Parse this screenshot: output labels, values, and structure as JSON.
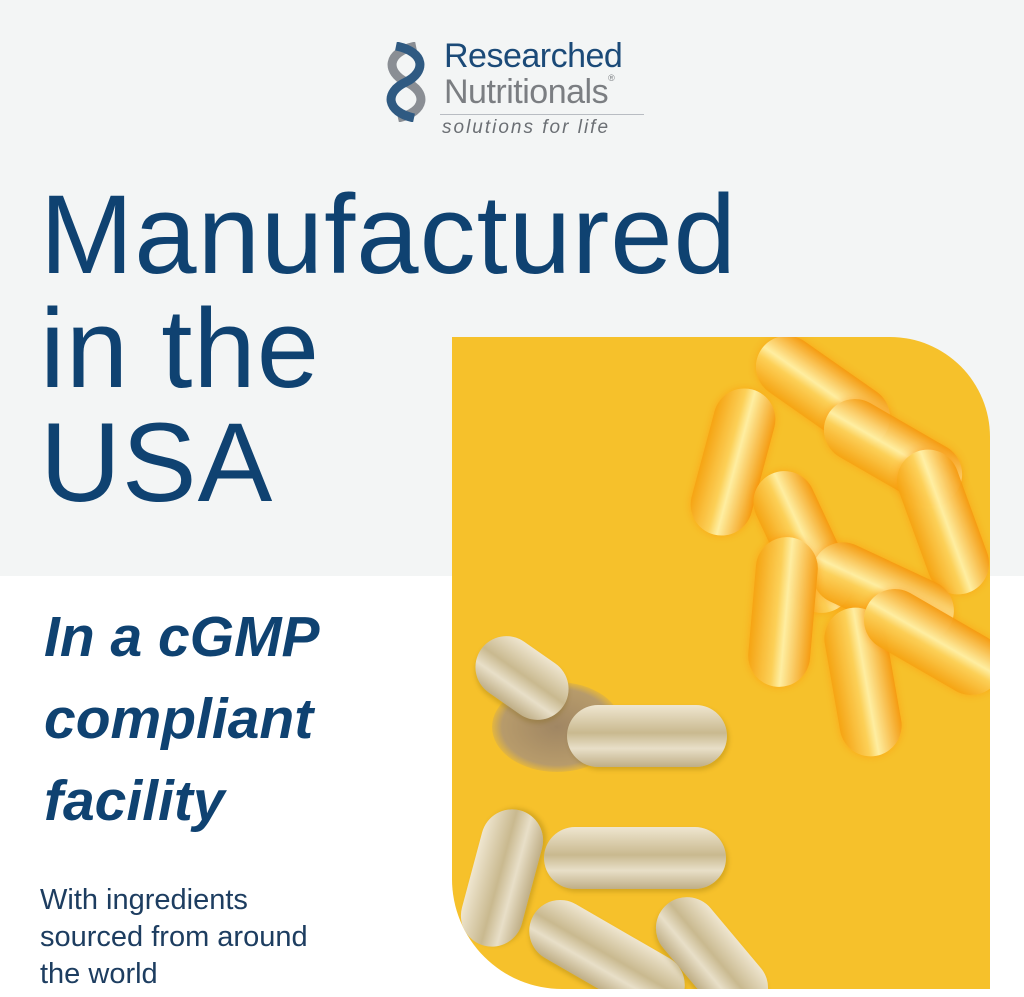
{
  "logo": {
    "line1": "Researched",
    "line2": "Nutritionals",
    "registered": "®",
    "tagline": "solutions for life"
  },
  "headline": {
    "lines": [
      "Manufactured",
      "in the",
      "USA"
    ]
  },
  "subheadline": {
    "lines": [
      "In a cGMP",
      "compliant",
      "facility"
    ]
  },
  "body": {
    "lines": [
      "With ingredients",
      "sourced from around",
      "the world"
    ]
  },
  "colors": {
    "brand_navy": "#0f4271",
    "top_background": "#f3f5f5",
    "photo_yellow": "#f6c12b"
  }
}
